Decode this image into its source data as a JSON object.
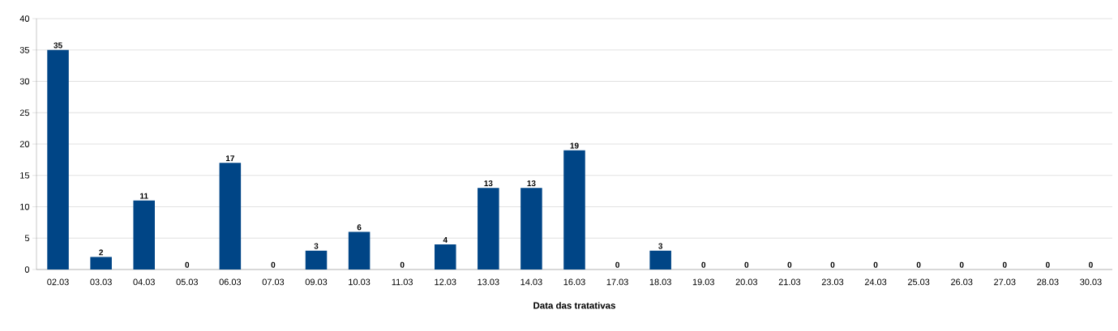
{
  "chart_data": {
    "type": "bar",
    "xlabel": "Data das tratativas",
    "categories": [
      "02.03",
      "03.03",
      "04.03",
      "05.03",
      "06.03",
      "07.03",
      "09.03",
      "10.03",
      "11.03",
      "12.03",
      "13.03",
      "14.03",
      "16.03",
      "17.03",
      "18.03",
      "19.03",
      "20.03",
      "21.03",
      "23.03",
      "24.03",
      "25.03",
      "26.03",
      "27.03",
      "28.03",
      "30.03"
    ],
    "values": [
      35,
      2,
      11,
      0,
      17,
      0,
      3,
      6,
      0,
      4,
      13,
      13,
      19,
      0,
      3,
      0,
      0,
      0,
      0,
      0,
      0,
      0,
      0,
      0,
      0
    ],
    "color": "#004586",
    "ylim": [
      0,
      40
    ],
    "yticks": [
      0,
      5,
      10,
      15,
      20,
      25,
      30,
      35,
      40
    ],
    "grid": "y",
    "data_labels": true
  }
}
